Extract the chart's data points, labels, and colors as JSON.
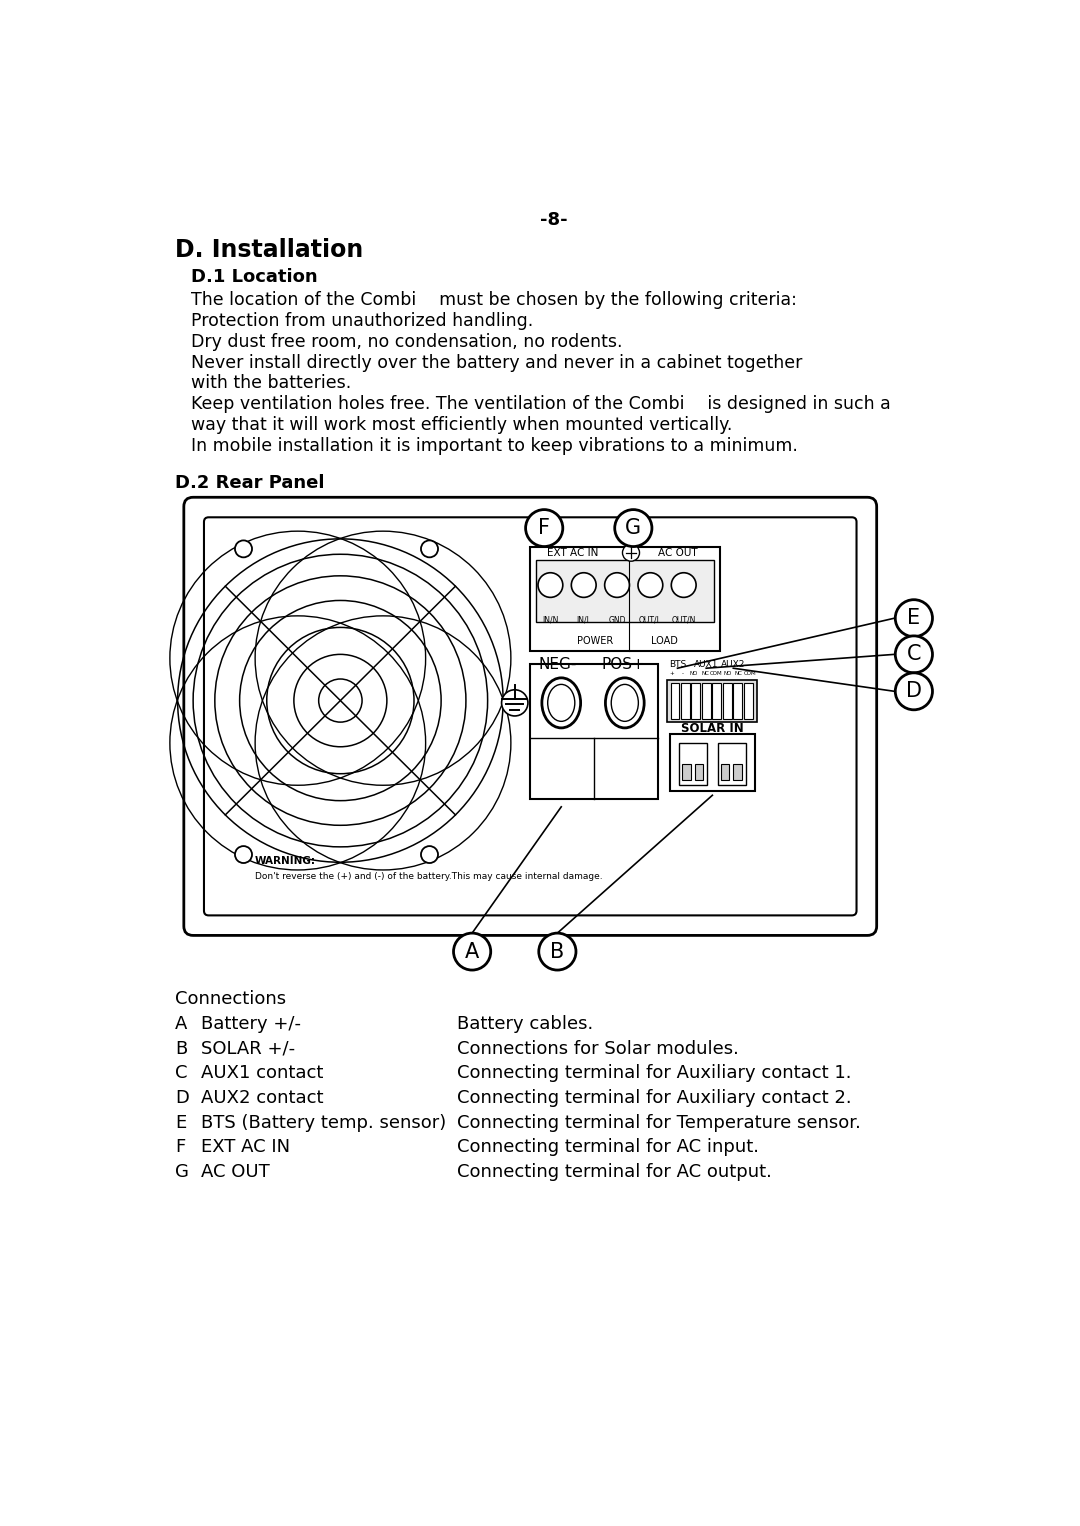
{
  "page_number": "-8-",
  "title_main": "D. Installation",
  "title_sub": "D.1 Location",
  "body_text": [
    "The location of the Combi  must be chosen by the following criteria:",
    "Protection from unauthorized handling.",
    "Dry dust free room, no condensation, no rodents.",
    "Never install directly over the battery and never in a cabinet together",
    "with the batteries.",
    "Keep ventilation holes free. The ventilation of the Combi  is designed in such a",
    "way that it will work most efficiently when mounted vertically.",
    "In mobile installation it is important to keep vibrations to a minimum."
  ],
  "section2_title": "D.2 Rear Panel",
  "connections_title": "Connections",
  "connections": [
    [
      "A",
      "Battery +/-",
      "Battery cables."
    ],
    [
      "B",
      "SOLAR +/-",
      "Connections for Solar modules."
    ],
    [
      "C",
      "AUX1 contact",
      "Connecting terminal for Auxiliary contact 1."
    ],
    [
      "D",
      "AUX2 contact",
      "Connecting terminal for Auxiliary contact 2."
    ],
    [
      "E",
      "BTS (Battery temp. sensor)",
      "Connecting terminal for Temperature sensor."
    ],
    [
      "F",
      "EXT AC IN",
      "Connecting terminal for AC input."
    ],
    [
      "G",
      "AC OUT",
      "Connecting terminal for AC output."
    ]
  ],
  "bg_color": "#ffffff",
  "text_color": "#000000"
}
